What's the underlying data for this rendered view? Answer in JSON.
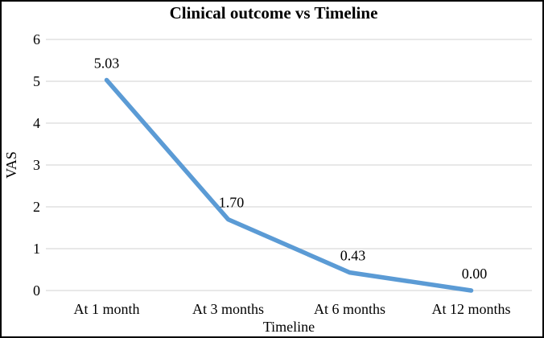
{
  "figure": {
    "background_color": "#ffffff",
    "border_color": "#000000"
  },
  "chart_data": {
    "type": "line",
    "title": "Clinical outcome vs Timeline",
    "xlabel": "Timeline",
    "ylabel": "VAS",
    "categories": [
      "At 1 month",
      "At 3 months",
      "At 6 months",
      "At 12 months"
    ],
    "series": [
      {
        "name": "VAS",
        "values": [
          5.03,
          1.7,
          0.43,
          0.0
        ],
        "data_labels": [
          "5.03",
          "1.70",
          "0.43",
          "0.00"
        ],
        "color": "#5B9BD5"
      }
    ],
    "ylim": [
      0,
      6
    ],
    "yticks": [
      "0",
      "1",
      "2",
      "3",
      "4",
      "5",
      "6"
    ],
    "grid": "horizontal",
    "gridline_color": "#D9D9D9",
    "legend": "none",
    "data_label_position": "above"
  }
}
